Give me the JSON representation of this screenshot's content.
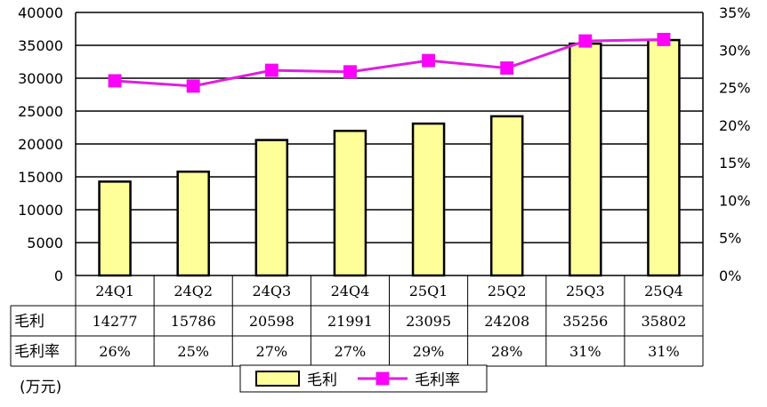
{
  "chart_data": {
    "type": "bar",
    "categories": [
      "24Q1",
      "24Q2",
      "24Q3",
      "24Q4",
      "25Q1",
      "25Q2",
      "25Q3",
      "25Q4"
    ],
    "series": [
      {
        "name": "毛利",
        "type": "bar",
        "axis": "left",
        "values": [
          14277,
          15786,
          20598,
          21991,
          23095,
          24208,
          35256,
          35802
        ]
      },
      {
        "name": "毛利率",
        "type": "line",
        "axis": "right",
        "values": [
          26,
          25,
          27,
          27,
          29,
          28,
          31,
          31
        ]
      }
    ],
    "y_left": {
      "min": 0,
      "max": 40000,
      "step": 5000,
      "ticks": [
        "0",
        "5000",
        "10000",
        "15000",
        "20000",
        "25000",
        "30000",
        "35000",
        "40000"
      ]
    },
    "y_right": {
      "min": 0,
      "max": 35,
      "step": 5,
      "ticks": [
        "0%",
        "5%",
        "10%",
        "15%",
        "20%",
        "25%",
        "30%",
        "35%"
      ]
    },
    "unit_label": "(万元)",
    "data_table": {
      "row_labels": [
        "毛利",
        "毛利率"
      ],
      "rows": [
        [
          "14277",
          "15786",
          "20598",
          "21991",
          "23095",
          "24208",
          "35256",
          "35802"
        ],
        [
          "26%",
          "25%",
          "27%",
          "27%",
          "29%",
          "28%",
          "31%",
          "31%"
        ]
      ]
    },
    "legend": [
      {
        "label": "毛利",
        "kind": "bar"
      },
      {
        "label": "毛利率",
        "kind": "line"
      }
    ],
    "legend_position": "bottom",
    "gridlines": true,
    "colors": {
      "bar_fill": "#ffff99",
      "bar_stroke": "#000000",
      "line": "#e01ee0",
      "marker": "#ff00ff",
      "grid": "#000000"
    },
    "line_precise_values": [
      25.9,
      25.2,
      27.3,
      27.1,
      28.6,
      27.6,
      31.2,
      31.4
    ]
  }
}
